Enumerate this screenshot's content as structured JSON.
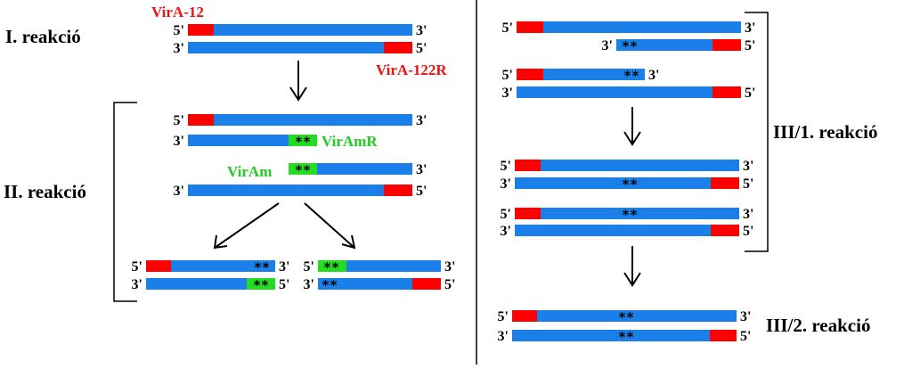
{
  "labels": {
    "reaction1": "I. reakció",
    "reaction2": "II. reakció",
    "reaction31": "III/1. reakció",
    "reaction32": "III/2. reakció"
  },
  "primers": {
    "fwd_outer": "VirA-12",
    "rev_outer": "VirA-122R",
    "fwd_mut": "VirAm",
    "rev_mut": "VirAmR"
  },
  "ends": {
    "five": "5'",
    "three": "3'"
  },
  "mutation_mark": "**",
  "colors": {
    "dna_strand": "#1a7fe8",
    "outer_primer": "#ff0000",
    "mutagenic_primer": "#22dd22",
    "outer_label": "#ee1111",
    "mutagenic_label": "#22cc22",
    "lines": "#000000"
  }
}
